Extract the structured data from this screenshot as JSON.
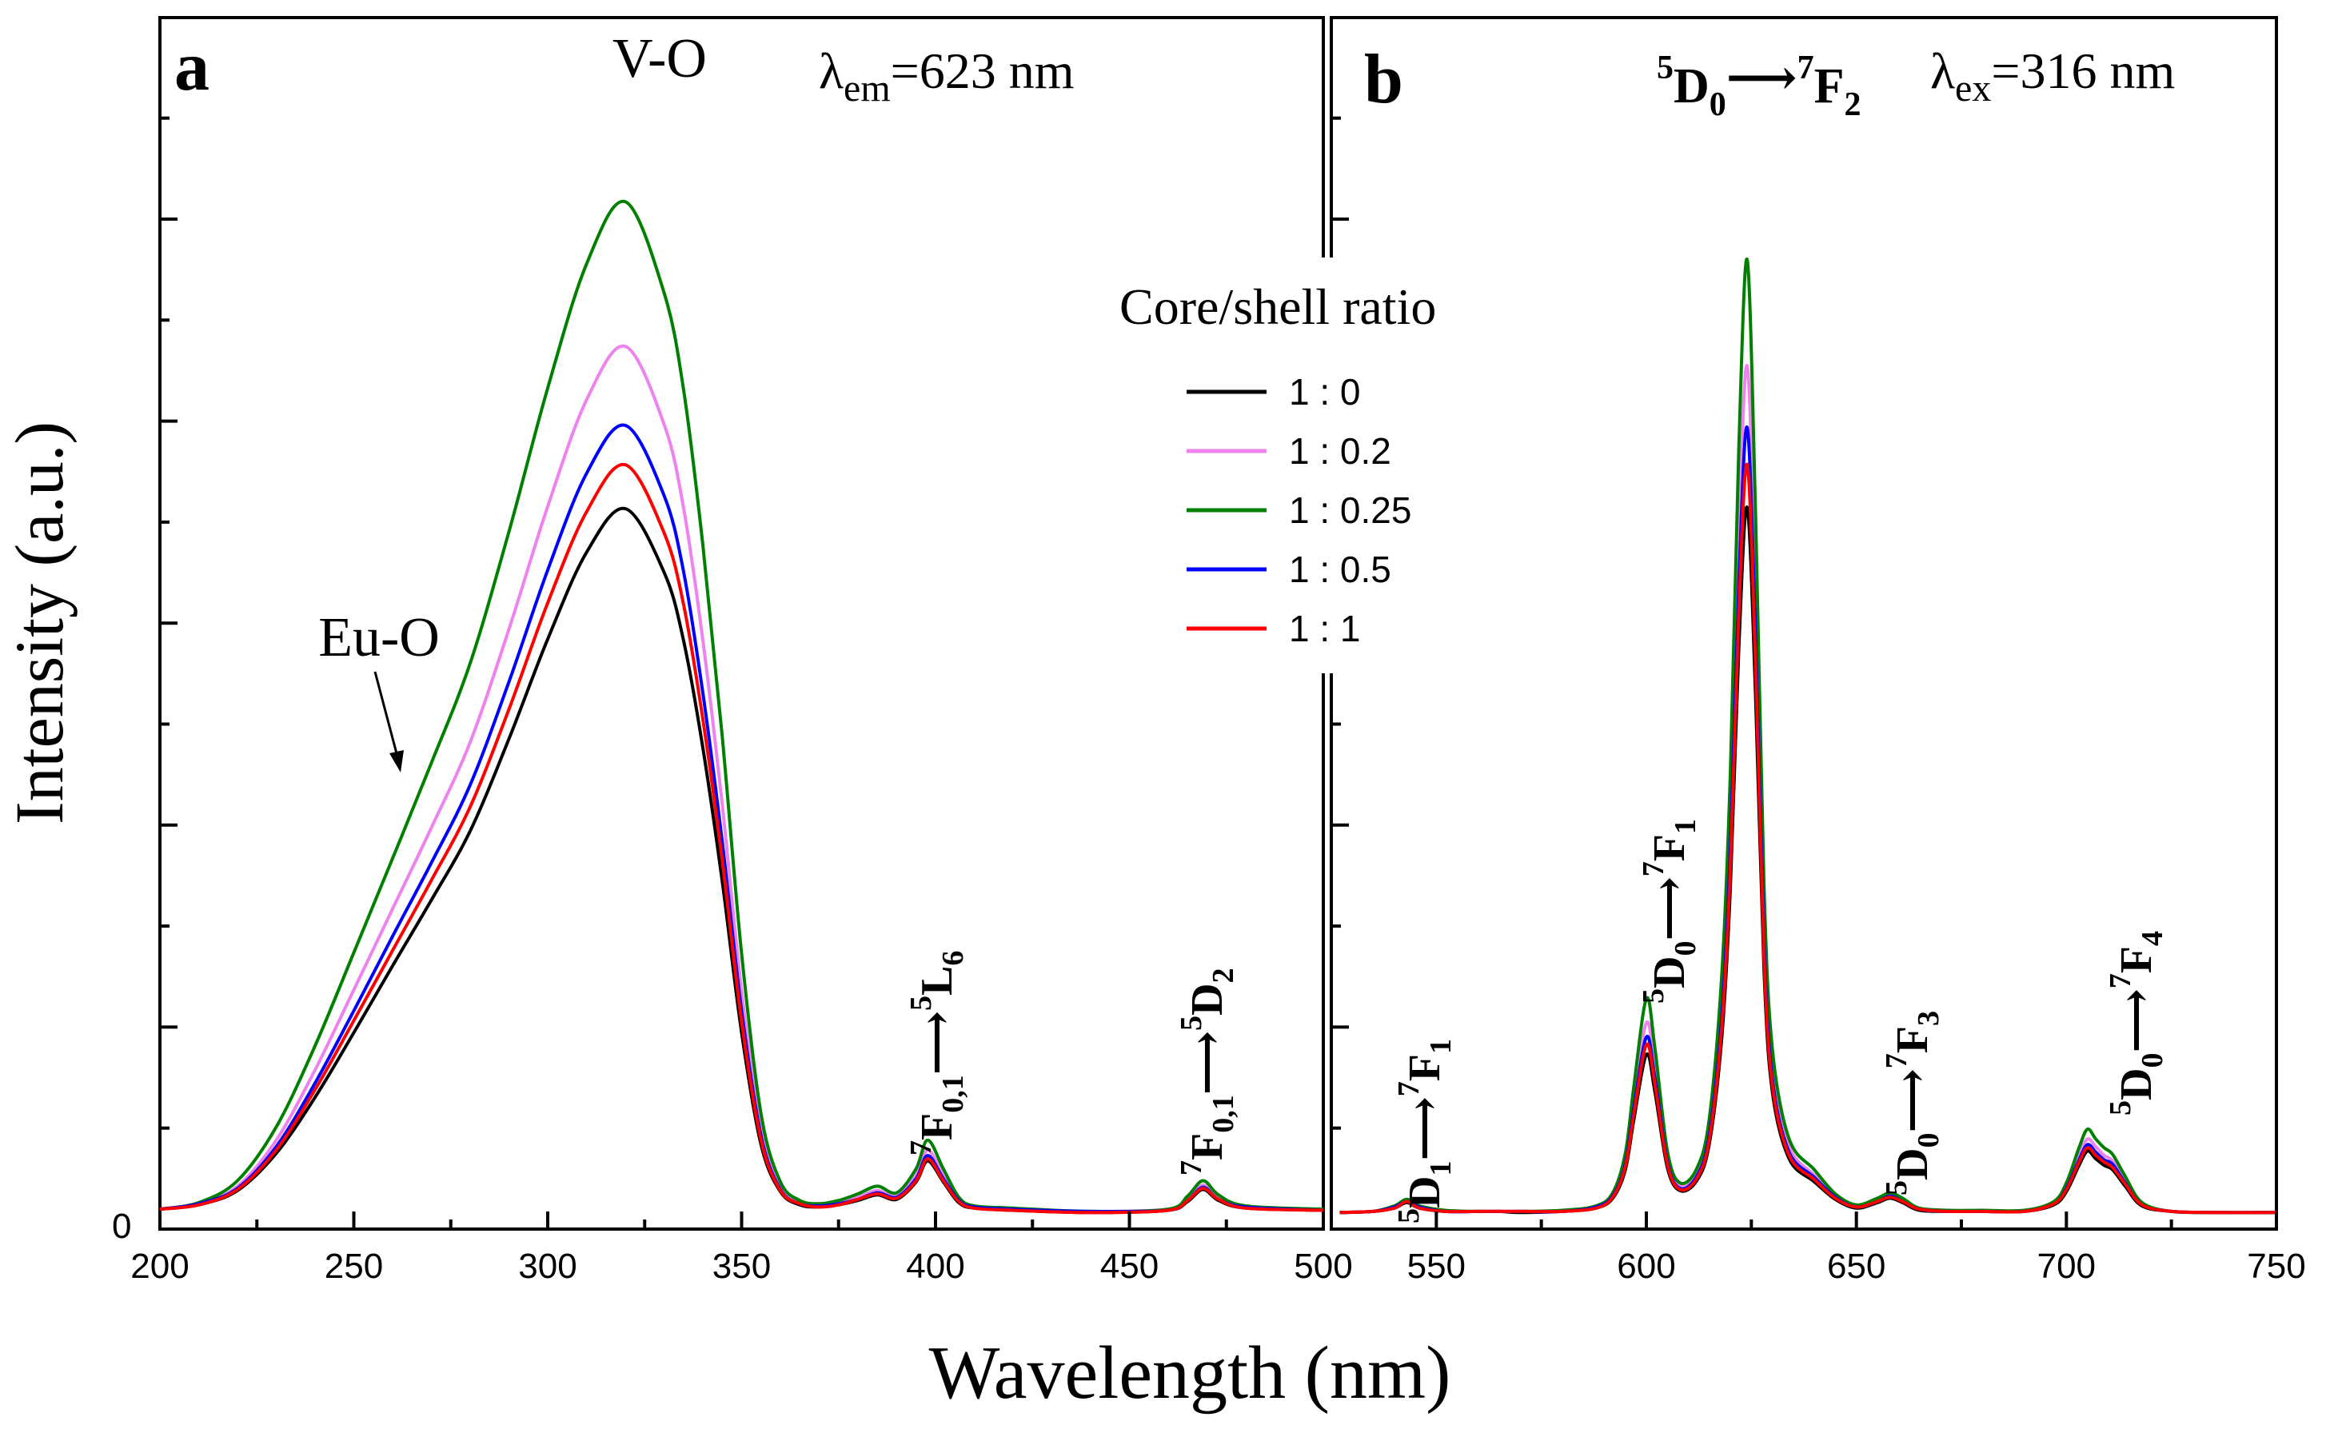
{
  "figure": {
    "y_axis_label": "Intensity (a.u.)",
    "x_axis_label": "Wavelength (nm)",
    "legend_title": "Core/shell ratio"
  },
  "chart_data": [
    {
      "type": "line",
      "panel_label": "a",
      "title": "",
      "xlabel": "Wavelength (nm)",
      "ylabel": "Intensity (a.u.)",
      "xlim": [
        200,
        500
      ],
      "ylim": [
        0,
        100
      ],
      "x_ticks": [
        200,
        250,
        300,
        350,
        400,
        450,
        500
      ],
      "x_tick_labels": [
        "200",
        "250",
        "300",
        "350",
        "400",
        "450",
        "500"
      ],
      "y_tick_labels": [
        "0"
      ],
      "condition": {
        "symbol": "λ",
        "sub": "em",
        "value": "=623 nm"
      },
      "annotations": {
        "vo": "V-O",
        "euo": "Eu-O",
        "t1": {
          "sup": "7",
          "main": "F",
          "sub": "0,1",
          "arrow": "⟶",
          "sup2": "5",
          "main2": "L",
          "sub2": "6"
        },
        "t2": {
          "sup": "7",
          "main": "F",
          "sub": "0,1",
          "arrow": "⟶",
          "sup2": "5",
          "main2": "D",
          "sub2": "2"
        }
      },
      "x": [
        200,
        210,
        220,
        230,
        240,
        250,
        260,
        270,
        280,
        290,
        300,
        310,
        320,
        330,
        335,
        340,
        345,
        350,
        355,
        360,
        365,
        370,
        375,
        380,
        385,
        390,
        395,
        398,
        402,
        406,
        410,
        420,
        440,
        460,
        465,
        469,
        473,
        480,
        500
      ],
      "series": [
        {
          "name": "1 : 0",
          "color": "#000000",
          "values": [
            0.5,
            0.9,
            2.2,
            5.6,
            10.7,
            16.6,
            22.7,
            28.7,
            35,
            43.4,
            52.5,
            60.4,
            64.4,
            58.6,
            52.4,
            42.6,
            30.4,
            16.6,
            6.4,
            2.1,
            0.9,
            0.7,
            0.9,
            1.3,
            1.8,
            1.4,
            3,
            4.9,
            3,
            1.1,
            0.6,
            0.4,
            0.2,
            0.4,
            1.2,
            2.3,
            1.3,
            0.6,
            0.4
          ]
        },
        {
          "name": "1 : 0.2",
          "color": "#ee82ee",
          "values": [
            0.5,
            1,
            2.6,
            6.8,
            13.2,
            20.5,
            27.9,
            35.3,
            43.1,
            53.4,
            64.6,
            74.3,
            79.2,
            72.1,
            64.5,
            52.4,
            37.4,
            20.4,
            7.9,
            2.6,
            1.1,
            0.8,
            1.1,
            1.6,
            2.2,
            1.7,
            3.6,
            5.9,
            3.6,
            1.4,
            0.7,
            0.5,
            0.3,
            0.5,
            1.4,
            2.7,
            1.5,
            0.7,
            0.4
          ]
        },
        {
          "name": "1 : 0.25",
          "color": "#008000",
          "values": [
            0.5,
            1.1,
            3.1,
            8,
            15.4,
            23.9,
            32.5,
            41.2,
            50.3,
            62.3,
            75.4,
            86.7,
            92.4,
            84.1,
            75.3,
            61.1,
            43.6,
            23.8,
            9.2,
            3,
            1.3,
            1,
            1.3,
            1.9,
            2.6,
            2,
            4.2,
            6.8,
            4.2,
            1.6,
            0.8,
            0.6,
            0.3,
            0.5,
            1.7,
            3.1,
            1.8,
            0.8,
            0.5
          ]
        },
        {
          "name": "1 : 0.5",
          "color": "#0000ff",
          "values": [
            0.5,
            1,
            2.4,
            6.2,
            12,
            18.6,
            25.4,
            32.1,
            39.2,
            48.6,
            58.8,
            67.6,
            72,
            65.6,
            58.7,
            47.6,
            34,
            18.6,
            7.2,
            2.3,
            1,
            0.8,
            1,
            1.4,
            2,
            1.6,
            3.3,
            5.4,
            3.3,
            1.3,
            0.7,
            0.5,
            0.3,
            0.4,
            1.3,
            2.5,
            1.4,
            0.7,
            0.4
          ]
        },
        {
          "name": "1 : 1",
          "color": "#ff0000",
          "values": [
            0.5,
            0.9,
            2.3,
            5.9,
            11.4,
            17.7,
            24.1,
            30.5,
            37.2,
            46.1,
            55.8,
            64.1,
            68.4,
            62.2,
            55.7,
            45.2,
            32.3,
            17.6,
            6.8,
            2.2,
            1,
            0.7,
            0.9,
            1.4,
            1.9,
            1.5,
            3.1,
            5.1,
            3.1,
            1.2,
            0.6,
            0.4,
            0.2,
            0.4,
            1.3,
            2.4,
            1.4,
            0.6,
            0.4
          ]
        }
      ]
    },
    {
      "type": "line",
      "panel_label": "b",
      "title": "",
      "xlabel": "Wavelength (nm)",
      "ylabel": "Intensity (a.u.)",
      "xlim": [
        525,
        750
      ],
      "ylim": [
        0,
        100
      ],
      "x_ticks": [
        550,
        600,
        650,
        700,
        750
      ],
      "x_tick_labels": [
        "550",
        "600",
        "650",
        "700",
        "750"
      ],
      "condition": {
        "symbol": "λ",
        "sub": "ex",
        "value": "=316 nm"
      },
      "annotations": {
        "main": {
          "sup": "5",
          "main": "D",
          "sub": "0",
          "arrow": "⟶",
          "sup2": "7",
          "main2": "F",
          "sub2": "2"
        },
        "p1": {
          "sup": "5",
          "main": "D",
          "sub": "1",
          "arrow": "⟶",
          "sup2": "7",
          "main2": "F",
          "sub2": "1"
        },
        "p2": {
          "sup": "5",
          "main": "D",
          "sub": "0",
          "arrow": "⟶",
          "sup2": "7",
          "main2": "F",
          "sub2": "1"
        },
        "p3": {
          "sup": "5",
          "main": "D",
          "sub": "0",
          "arrow": "⟶",
          "sup2": "7",
          "main2": "F",
          "sub2": "3"
        },
        "p4": {
          "sup": "5",
          "main": "D",
          "sub": "0",
          "arrow": "⟶",
          "sup2": "7",
          "main2": "F",
          "sub2": "4"
        }
      },
      "x": [
        527,
        535,
        540,
        543,
        546,
        552,
        560,
        565,
        570,
        580,
        588,
        592,
        595,
        597,
        600,
        602,
        605,
        608,
        612,
        615,
        618,
        620,
        622,
        624,
        626,
        628,
        630,
        634,
        640,
        645,
        650,
        655,
        658,
        661,
        665,
        672,
        680,
        690,
        697,
        700,
        703,
        705,
        707,
        709,
        711,
        714,
        718,
        725,
        735,
        750
      ],
      "series": [
        {
          "name": "1 : 0",
          "color": "#000000",
          "values": [
            0.2,
            0.3,
            0.6,
            1.1,
            0.6,
            0.3,
            0.3,
            0.3,
            0.2,
            0.3,
            0.6,
            1.5,
            4.1,
            8.6,
            14.6,
            11.3,
            4.3,
            2.2,
            3.1,
            6.5,
            16.4,
            29.9,
            51.6,
            64.5,
            47.3,
            22.4,
            11.2,
            5.1,
            3,
            1.4,
            0.6,
            1.1,
            1.5,
            1.1,
            0.4,
            0.3,
            0.3,
            0.3,
            0.9,
            2.1,
            4.5,
            5.8,
            5.1,
            4.5,
            4.1,
            2.6,
            0.8,
            0.3,
            0.2,
            0.2
          ]
        },
        {
          "name": "1 : 0.2",
          "color": "#ee82ee",
          "values": [
            0.2,
            0.3,
            0.7,
            1.3,
            0.7,
            0.3,
            0.3,
            0.3,
            0.3,
            0.3,
            0.7,
            1.8,
            5,
            10.3,
            17.5,
            13.6,
            5.2,
            2.6,
            3.7,
            7.8,
            19.7,
            35.9,
            62,
            77.4,
            56.8,
            26.8,
            13.4,
            6.2,
            3.6,
            1.7,
            0.8,
            1.3,
            1.8,
            1.3,
            0.5,
            0.3,
            0.3,
            0.3,
            1.1,
            2.6,
            5.4,
            6.9,
            6.2,
            5.4,
            4.9,
            3.1,
            1,
            0.3,
            0.2,
            0.2
          ]
        },
        {
          "name": "1 : 0.25",
          "color": "#008000",
          "values": [
            0.2,
            0.3,
            0.8,
            1.4,
            0.8,
            0.4,
            0.3,
            0.3,
            0.3,
            0.4,
            0.8,
            2,
            5.6,
            11.6,
            19.7,
            15.3,
            5.8,
            2.9,
            4.2,
            8.8,
            22.2,
            40.4,
            69.8,
            87.1,
            63.9,
            30.1,
            15.1,
            6.9,
            4.1,
            1.9,
            0.9,
            1.5,
            2,
            1.5,
            0.6,
            0.4,
            0.4,
            0.4,
            1.2,
            2.9,
            6.1,
            7.8,
            6.9,
            6.1,
            5.5,
            3.5,
            1.1,
            0.3,
            0.2,
            0.2
          ]
        },
        {
          "name": "1 : 0.5",
          "color": "#0000ff",
          "values": [
            0.2,
            0.3,
            0.7,
            1.2,
            0.7,
            0.3,
            0.3,
            0.3,
            0.3,
            0.3,
            0.7,
            1.7,
            4.6,
            9.6,
            16.2,
            12.6,
            4.8,
            2.4,
            3.5,
            7.3,
            18.3,
            33.4,
            57.5,
            71.8,
            52.7,
            24.9,
            12.4,
            5.7,
            3.4,
            1.6,
            0.7,
            1.2,
            1.7,
            1.2,
            0.5,
            0.3,
            0.3,
            0.3,
            1,
            2.4,
            5,
            6.4,
            5.7,
            5,
            4.6,
            2.9,
            0.9,
            0.3,
            0.2,
            0.2
          ]
        },
        {
          "name": "1 : 1",
          "color": "#ff0000",
          "values": [
            0.2,
            0.3,
            0.6,
            1.2,
            0.6,
            0.3,
            0.3,
            0.3,
            0.3,
            0.3,
            0.6,
            1.6,
            4.4,
            9.1,
            15.5,
            12,
            4.6,
            2.3,
            3.3,
            6.9,
            17.4,
            31.7,
            54.8,
            68.4,
            50.2,
            23.7,
            11.8,
            5.4,
            3.2,
            1.5,
            0.7,
            1.2,
            1.6,
            1.2,
            0.5,
            0.3,
            0.3,
            0.3,
            1,
            2.3,
            4.8,
            6.1,
            5.4,
            4.8,
            4.3,
            2.8,
            0.9,
            0.3,
            0.2,
            0.2
          ]
        }
      ]
    }
  ]
}
